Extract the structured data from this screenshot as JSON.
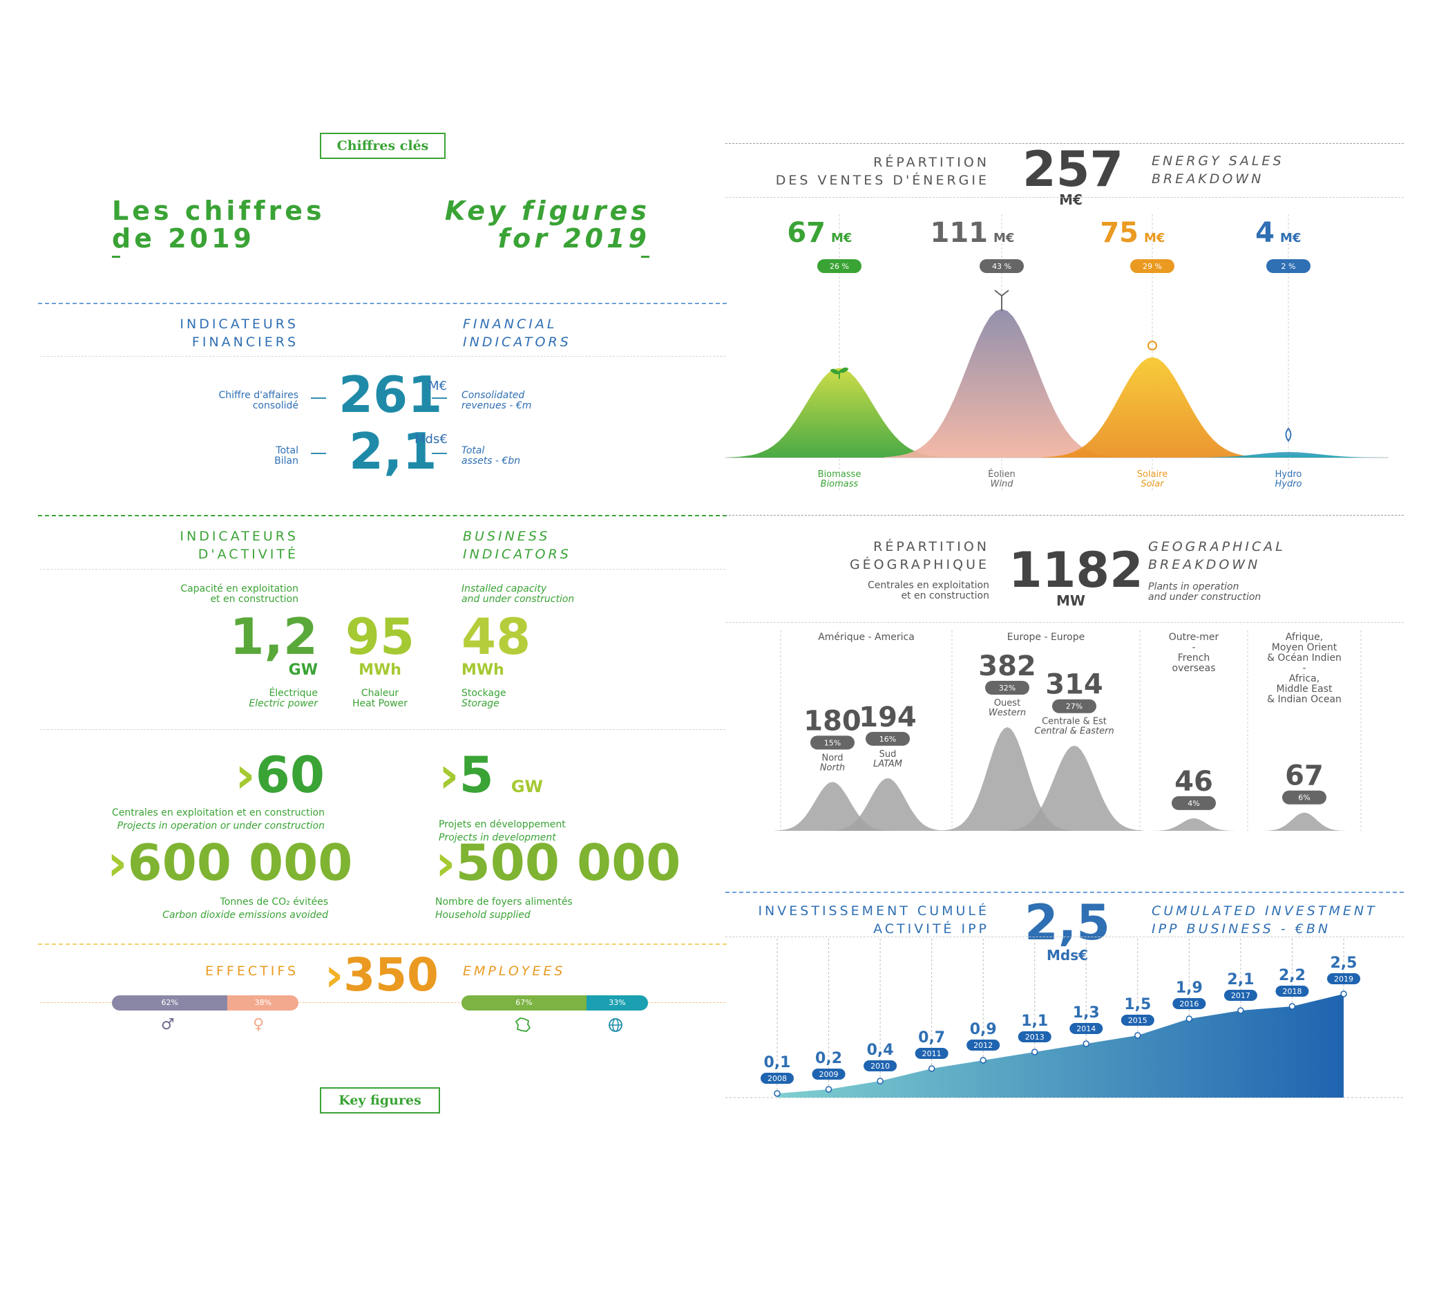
{
  "tags": {
    "top": "Chiffres clés",
    "bottom": "Key figures"
  },
  "titles": {
    "fr_line1": "Les chiffres",
    "fr_line2": "de 2019",
    "en_line1": "Key figures",
    "en_line2": "for 2019"
  },
  "financial": {
    "fr_title1": "INDICATEURS",
    "fr_title2": "FINANCIERS",
    "en_title1": "FINANCIAL",
    "en_title2": "INDICATORS",
    "revenue_fr1": "Chiffre d'affaires",
    "revenue_fr2": "consolidé",
    "revenue_value": "261",
    "revenue_unit": "M€",
    "revenue_en1": "Consolidated",
    "revenue_en2": "revenues - €m",
    "assets_fr1": "Total",
    "assets_fr2": "Bilan",
    "assets_value": "2,1",
    "assets_unit": "Mds€",
    "assets_en1": "Total",
    "assets_en2": "assets - €bn"
  },
  "business": {
    "fr_title1": "INDICATEURS",
    "fr_title2": "D'ACTIVITÉ",
    "en_title1": "BUSINESS",
    "en_title2": "INDICATORS",
    "cap_fr1": "Capacité en exploitation",
    "cap_fr2": "et en construction",
    "cap_en1": "Installed capacity",
    "cap_en2": "and under construction",
    "items": [
      {
        "value": "1,2",
        "unit": "GW",
        "fr": "Électrique",
        "en": "Electric power"
      },
      {
        "value": "95",
        "unit": "MWh",
        "fr": "Chaleur",
        "en": "Heat Power"
      },
      {
        "value": "48",
        "unit": "MWh",
        "fr": "Stockage",
        "en": "Storage"
      }
    ],
    "plants_value": "60",
    "plants_fr": "Centrales en exploitation et en construction",
    "plants_en": "Projects in operation or under construction",
    "projects_value": "5",
    "projects_unit": "GW",
    "projects_fr": "Projets en développement",
    "projects_en": "Projects in development",
    "co2_value": "600 000",
    "co2_fr": "Tonnes de CO₂ évitées",
    "co2_en": "Carbon dioxide emissions avoided",
    "homes_value": "500 000",
    "homes_fr": "Nombre de foyers alimentés",
    "homes_en": "Household supplied"
  },
  "staff": {
    "fr": "EFFECTIFS",
    "en": "EMPLOYEES",
    "value": "350",
    "gender": [
      {
        "label": "62%",
        "pct": 62
      },
      {
        "label": "38%",
        "pct": 38
      }
    ],
    "origin": [
      {
        "label": "67%",
        "pct": 67
      },
      {
        "label": "33%",
        "pct": 33
      }
    ],
    "colors": {
      "male": "#8a87a6",
      "female": "#f3a98e",
      "france": "#7cb342",
      "world": "#1aa0b0"
    }
  },
  "energy": {
    "fr1": "RÉPARTITION",
    "fr2": "DES VENTES D'ÉNERGIE",
    "en1": "ENERGY SALES",
    "en2": "BREAKDOWN",
    "total": "257",
    "total_unit": "M€"
  },
  "geo": {
    "fr1": "RÉPARTITION",
    "fr2": "GÉOGRAPHIQUE",
    "sub_fr1": "Centrales en exploitation",
    "sub_fr2": "et en construction",
    "en1": "GEOGRAPHICAL",
    "en2": "BREAKDOWN",
    "sub_en1": "Plants in operation",
    "sub_en2": "and under construction",
    "total": "1182",
    "total_unit": "MW",
    "zones": [
      {
        "title": "Amérique - America"
      },
      {
        "title": "Europe - Europe"
      },
      {
        "title": "Outre-mer\n-\nFrench\noverseas"
      },
      {
        "title": "Afrique,\nMoyen Orient\n& Océan Indien\n-\nAfrica,\nMiddle East\n& Indian Ocean"
      }
    ]
  },
  "invest": {
    "fr1": "INVESTISSEMENT CUMULÉ",
    "fr2": "ACTIVITÉ IPP",
    "en1": "CUMULATED INVESTMENT",
    "en2": "IPP BUSINESS - €bn",
    "total": "2,5",
    "total_unit": "Mds€"
  },
  "chart_data": [
    {
      "type": "area",
      "title": "RÉPARTITION DES VENTES D'ÉNERGIE / ENERGY SALES BREAKDOWN",
      "unit": "M€",
      "categories": [
        {
          "fr": "Biomasse",
          "en": "Biomass"
        },
        {
          "fr": "Éolien",
          "en": "Wind"
        },
        {
          "fr": "Solaire",
          "en": "Solar"
        },
        {
          "fr": "Hydro",
          "en": "Hydro"
        }
      ],
      "values": [
        67,
        111,
        75,
        4
      ],
      "percents": [
        "26 %",
        "43 %",
        "29 %",
        "2 %"
      ],
      "colors": [
        "#3aa335",
        "#666666",
        "#ea9a20",
        "#2f6fb3"
      ]
    },
    {
      "type": "area",
      "title": "RÉPARTITION GÉOGRAPHIQUE / GEOGRAPHICAL BREAKDOWN",
      "unit": "MW",
      "series": [
        {
          "zone": "Amérique - America",
          "name_fr": "Nord",
          "name_en": "North",
          "value": 180,
          "pct": "15%"
        },
        {
          "zone": "Amérique - America",
          "name_fr": "Sud",
          "name_en": "LATAM",
          "value": 194,
          "pct": "16%"
        },
        {
          "zone": "Europe - Europe",
          "name_fr": "Ouest",
          "name_en": "Western",
          "value": 382,
          "pct": "32%"
        },
        {
          "zone": "Europe - Europe",
          "name_fr": "Centrale & Est",
          "name_en": "Central & Eastern",
          "value": 314,
          "pct": "27%"
        },
        {
          "zone": "Outre-mer",
          "name_fr": "",
          "name_en": "",
          "value": 46,
          "pct": "4%"
        },
        {
          "zone": "Afrique",
          "name_fr": "",
          "name_en": "",
          "value": 67,
          "pct": "6%"
        }
      ]
    },
    {
      "type": "area",
      "title": "INVESTISSEMENT CUMULÉ ACTIVITÉ IPP / CUMULATED INVESTMENT IPP BUSINESS - €bn",
      "x": [
        "2008",
        "2009",
        "2010",
        "2011",
        "2012",
        "2013",
        "2014",
        "2015",
        "2016",
        "2017",
        "2018",
        "2019"
      ],
      "values": [
        0.1,
        0.2,
        0.4,
        0.7,
        0.9,
        1.1,
        1.3,
        1.5,
        1.9,
        2.1,
        2.2,
        2.5
      ],
      "labels": [
        "0,1",
        "0,2",
        "0,4",
        "0,7",
        "0,9",
        "1,1",
        "1,3",
        "1,5",
        "1,9",
        "2,1",
        "2,2",
        "2,5"
      ]
    }
  ]
}
